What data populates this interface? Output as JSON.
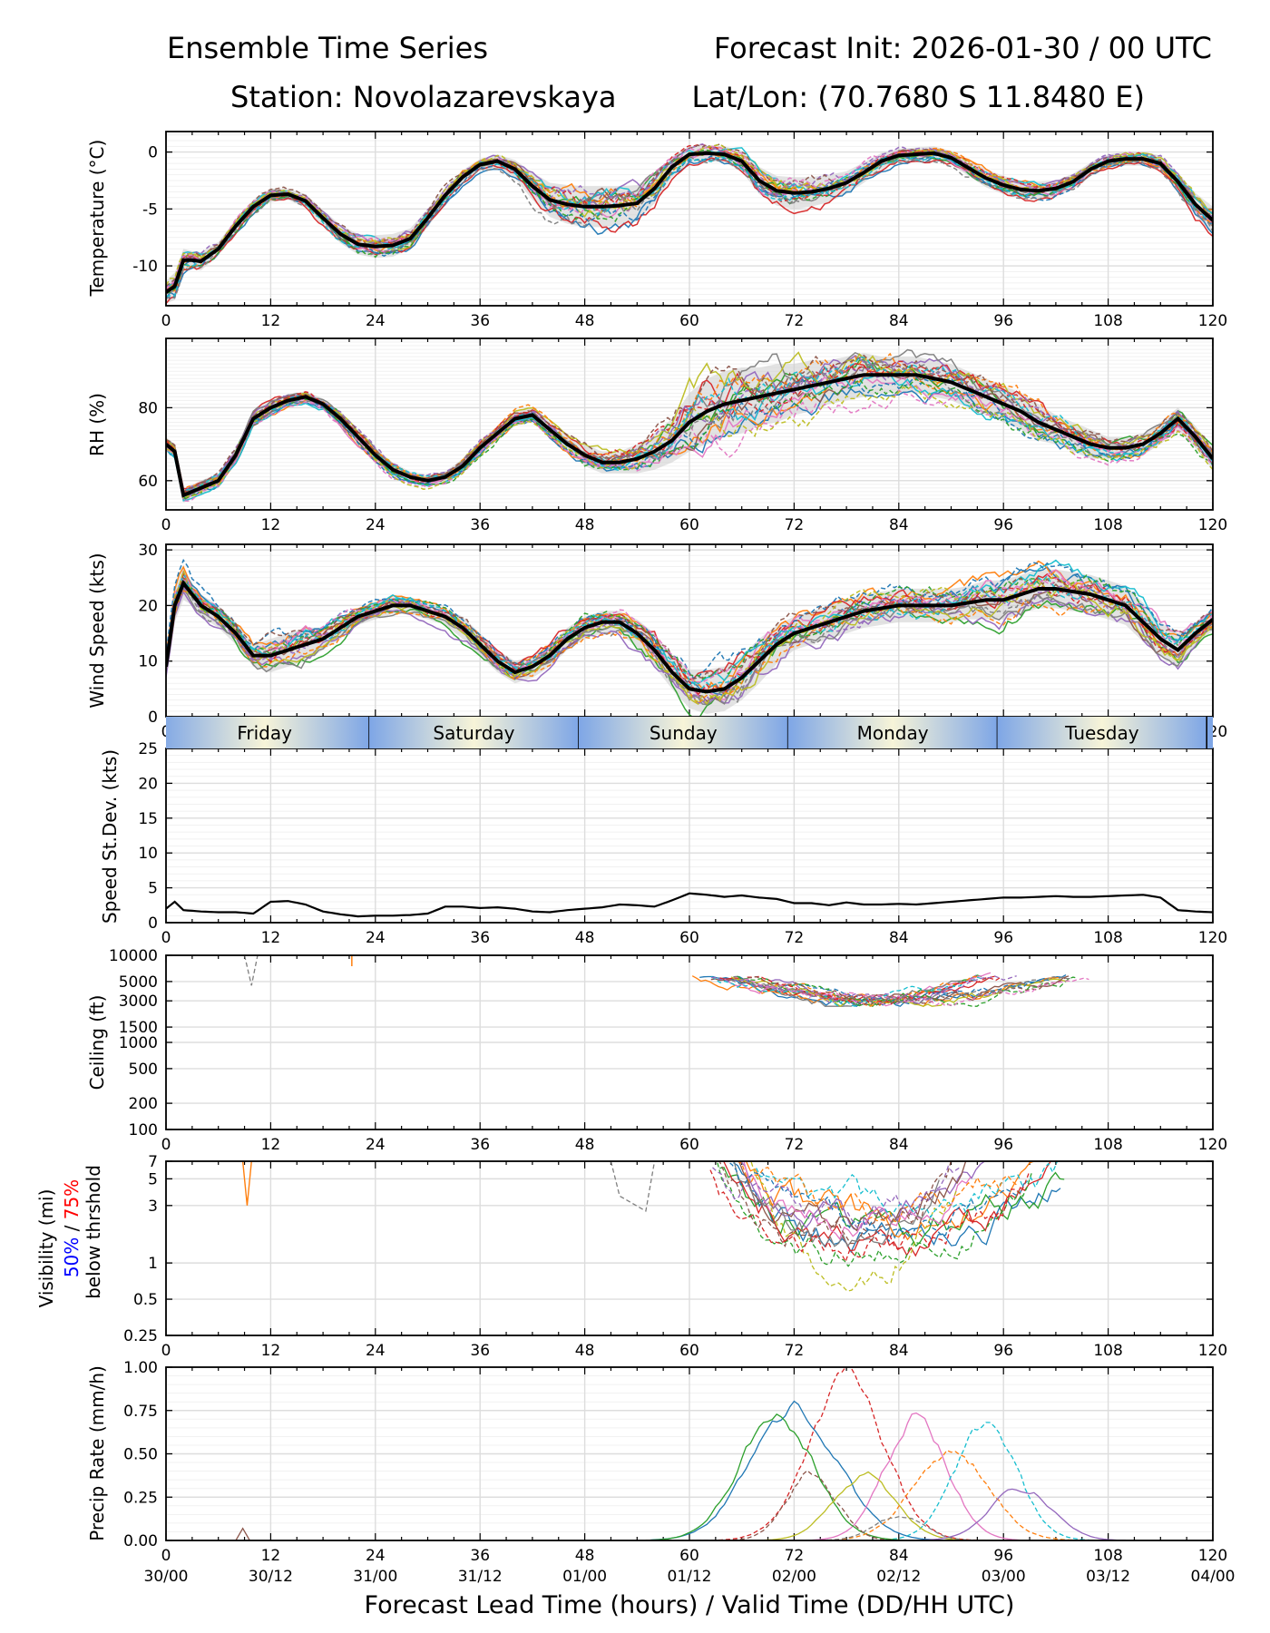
{
  "header": {
    "title": "Ensemble Time Series",
    "init": "Forecast Init: 2026-01-30 / 00 UTC",
    "station": "Station: Novolazarevskaya",
    "latlon": "Lat/Lon: (70.7680 S 11.8480 E)"
  },
  "xaxis": {
    "range": [
      0,
      120
    ],
    "ticks": [
      "0",
      "12",
      "24",
      "36",
      "48",
      "60",
      "72",
      "84",
      "96",
      "108",
      "120"
    ],
    "valid_times": [
      "30/00",
      "30/12",
      "31/00",
      "31/12",
      "01/00",
      "01/12",
      "02/00",
      "02/12",
      "03/00",
      "03/12",
      "04/00"
    ],
    "label": "Forecast Lead Time (hours) / Valid Time (DD/HH UTC)"
  },
  "days": [
    {
      "label": "Friday"
    },
    {
      "label": "Saturday"
    },
    {
      "label": "Sunday"
    },
    {
      "label": "Monday"
    },
    {
      "label": "Tuesday"
    }
  ],
  "colors": {
    "mean": "#000000",
    "spread": "#cccccc",
    "members": [
      "#1f77b4",
      "#ff7f0e",
      "#2ca02c",
      "#d62728",
      "#9467bd",
      "#8c564b",
      "#e377c2",
      "#7f7f7f",
      "#bcbd22",
      "#17becf"
    ],
    "vis50": "#0000ff",
    "vis75": "#ff0000"
  },
  "chart_data": [
    {
      "type": "line",
      "ylabel": "Temperature (°C)",
      "ylim": [
        -13.5,
        1.8
      ],
      "yticks": [
        "0",
        "-5",
        "-10"
      ],
      "x": [
        0,
        1,
        2,
        3,
        4,
        6,
        8,
        10,
        12,
        14,
        16,
        18,
        20,
        22,
        24,
        26,
        28,
        30,
        32,
        34,
        36,
        38,
        40,
        42,
        44,
        46,
        48,
        50,
        52,
        54,
        56,
        58,
        60,
        62,
        64,
        66,
        68,
        70,
        72,
        74,
        76,
        78,
        80,
        82,
        84,
        86,
        88,
        90,
        92,
        94,
        96,
        98,
        100,
        102,
        104,
        106,
        108,
        110,
        112,
        114,
        116,
        118,
        120
      ],
      "series": [
        {
          "name": "ensemble mean",
          "values": [
            -12.3,
            -11.8,
            -9.5,
            -9.5,
            -9.6,
            -8.5,
            -6.5,
            -4.8,
            -3.8,
            -3.7,
            -4.3,
            -5.8,
            -7.2,
            -8.1,
            -8.3,
            -8.2,
            -7.6,
            -5.8,
            -3.8,
            -2.2,
            -1.1,
            -0.8,
            -1.5,
            -3.0,
            -4.2,
            -4.6,
            -4.8,
            -4.8,
            -4.7,
            -4.5,
            -3.2,
            -1.3,
            -0.2,
            -0.1,
            -0.2,
            -0.8,
            -2.5,
            -3.4,
            -3.6,
            -3.5,
            -3.2,
            -2.7,
            -1.8,
            -0.8,
            -0.3,
            -0.2,
            -0.1,
            -0.5,
            -1.4,
            -2.3,
            -2.9,
            -3.3,
            -3.4,
            -3.2,
            -2.6,
            -1.5,
            -0.8,
            -0.6,
            -0.6,
            -1.0,
            -2.6,
            -4.6,
            -6.0
          ]
        }
      ],
      "spread": [
        1.0,
        1.2,
        1.0,
        0.8,
        0.8,
        0.6,
        0.6,
        0.6,
        0.6,
        0.5,
        0.6,
        0.7,
        0.8,
        0.9,
        1.0,
        1.0,
        0.9,
        0.8,
        0.7,
        0.6,
        0.5,
        0.6,
        0.8,
        1.2,
        1.5,
        1.7,
        1.8,
        1.8,
        1.7,
        1.6,
        1.3,
        0.9,
        0.7,
        0.7,
        0.7,
        0.9,
        1.2,
        1.3,
        1.4,
        1.3,
        1.2,
        1.0,
        0.9,
        0.7,
        0.6,
        0.6,
        0.6,
        0.6,
        0.7,
        0.8,
        0.8,
        0.8,
        0.8,
        0.7,
        0.7,
        0.6,
        0.6,
        0.6,
        0.6,
        0.7,
        0.8,
        1.0,
        1.2
      ]
    },
    {
      "type": "line",
      "ylabel": "RH (%)",
      "ylim": [
        52,
        99
      ],
      "yticks": [
        "80",
        "60"
      ],
      "x": [
        0,
        1,
        2,
        3,
        4,
        6,
        8,
        10,
        12,
        14,
        16,
        18,
        20,
        22,
        24,
        26,
        28,
        30,
        32,
        34,
        36,
        38,
        40,
        42,
        44,
        46,
        48,
        50,
        52,
        54,
        56,
        58,
        60,
        62,
        64,
        66,
        68,
        70,
        72,
        74,
        76,
        78,
        80,
        82,
        84,
        86,
        88,
        90,
        92,
        94,
        96,
        98,
        100,
        102,
        104,
        106,
        108,
        110,
        112,
        114,
        116,
        118,
        120
      ],
      "series": [
        {
          "name": "ensemble mean",
          "values": [
            70,
            68,
            56,
            57,
            58,
            60,
            67,
            77,
            80,
            82,
            83,
            81,
            77,
            72,
            67,
            63,
            61,
            60,
            61,
            64,
            69,
            73,
            77,
            78,
            74,
            70,
            67,
            65,
            65,
            66,
            68,
            71,
            76,
            79,
            81,
            82,
            83,
            84,
            85,
            86,
            87,
            88,
            89,
            89,
            89,
            89,
            88,
            87,
            85,
            83,
            81,
            79,
            76,
            74,
            72,
            70,
            69,
            69,
            70,
            73,
            77,
            72,
            66
          ]
        }
      ],
      "spread": [
        2,
        2,
        2,
        2,
        2,
        2,
        2,
        2,
        2,
        1.5,
        1.5,
        1.5,
        2,
        2,
        2,
        2,
        1.5,
        1.5,
        1.5,
        2,
        2,
        2,
        2,
        2,
        2,
        2,
        3,
        3,
        3,
        4,
        5,
        6,
        8,
        9,
        9,
        9,
        8,
        8,
        7,
        7,
        6,
        6,
        6,
        5,
        5,
        5,
        5,
        5,
        5,
        5,
        5,
        5,
        5,
        4,
        4,
        4,
        3,
        3,
        3,
        3,
        3,
        3,
        3
      ]
    },
    {
      "type": "line",
      "ylabel": "Wind Speed (kts)",
      "ylim": [
        0,
        31
      ],
      "yticks": [
        "30",
        "20",
        "10",
        "0"
      ],
      "x": [
        0,
        1,
        2,
        3,
        4,
        6,
        8,
        10,
        12,
        14,
        16,
        18,
        20,
        22,
        24,
        26,
        28,
        30,
        32,
        34,
        36,
        38,
        40,
        42,
        44,
        46,
        48,
        50,
        52,
        54,
        56,
        58,
        60,
        62,
        64,
        66,
        68,
        70,
        72,
        74,
        76,
        78,
        80,
        82,
        84,
        86,
        88,
        90,
        92,
        94,
        96,
        98,
        100,
        102,
        104,
        106,
        108,
        110,
        112,
        114,
        116,
        118,
        120
      ],
      "series": [
        {
          "name": "ensemble mean",
          "values": [
            9,
            20,
            24,
            22,
            20,
            18,
            15,
            11,
            11,
            12,
            13,
            14,
            16,
            18,
            19,
            20,
            20,
            19,
            18,
            16,
            13,
            10,
            8,
            9,
            11,
            14,
            16,
            17,
            17,
            15,
            12,
            8,
            5,
            4.5,
            5,
            7,
            10,
            13,
            15,
            16,
            17,
            18,
            19,
            19.5,
            20,
            20,
            20,
            20,
            20.5,
            21,
            21,
            22,
            23,
            23,
            22.5,
            22,
            21,
            20,
            17,
            14,
            12,
            15,
            17.5
          ]
        }
      ],
      "spread": [
        2,
        3,
        3,
        2,
        2,
        2,
        2,
        2,
        3,
        3,
        3,
        2,
        2,
        1.5,
        1.5,
        1.5,
        1.5,
        1.5,
        1.5,
        2,
        2,
        2,
        2,
        2,
        2,
        2,
        2,
        2,
        2,
        2.5,
        3,
        3,
        3.5,
        4,
        4,
        4,
        4,
        3.5,
        3,
        3,
        3,
        3,
        3,
        3,
        3,
        3,
        3,
        3,
        3,
        3.5,
        3.5,
        3.5,
        3.5,
        3.5,
        3.5,
        3.5,
        3.5,
        3.5,
        3.5,
        3,
        3,
        2,
        2
      ]
    },
    {
      "type": "line",
      "ylabel": "Speed St.Dev. (kts)",
      "ylim": [
        0,
        25
      ],
      "yticks": [
        "25",
        "20",
        "15",
        "10",
        "5",
        "0"
      ],
      "x": [
        0,
        1,
        2,
        3,
        4,
        6,
        8,
        10,
        12,
        14,
        16,
        18,
        20,
        22,
        24,
        26,
        28,
        30,
        32,
        34,
        36,
        38,
        40,
        42,
        44,
        46,
        48,
        50,
        52,
        54,
        56,
        58,
        60,
        62,
        64,
        66,
        68,
        70,
        72,
        74,
        76,
        78,
        80,
        82,
        84,
        86,
        88,
        90,
        92,
        94,
        96,
        98,
        100,
        102,
        104,
        106,
        108,
        110,
        112,
        114,
        116,
        118,
        120
      ],
      "series": [
        {
          "name": "speed st.dev.",
          "values": [
            2,
            3,
            1.8,
            1.7,
            1.6,
            1.5,
            1.5,
            1.3,
            3.0,
            3.1,
            2.6,
            1.6,
            1.2,
            0.9,
            1.0,
            1.0,
            1.1,
            1.3,
            2.3,
            2.3,
            2.1,
            2.2,
            2.0,
            1.6,
            1.5,
            1.8,
            2.0,
            2.2,
            2.6,
            2.5,
            2.3,
            3.2,
            4.2,
            4.0,
            3.7,
            3.9,
            3.6,
            3.4,
            2.8,
            2.8,
            2.5,
            2.9,
            2.6,
            2.6,
            2.7,
            2.6,
            2.8,
            3.0,
            3.2,
            3.4,
            3.6,
            3.6,
            3.7,
            3.8,
            3.7,
            3.7,
            3.8,
            3.9,
            4.0,
            3.6,
            1.8,
            1.6,
            1.5
          ]
        }
      ]
    },
    {
      "type": "line",
      "ylabel": "Ceiling (ft)",
      "yscale": "log",
      "ylim": [
        100,
        10000
      ],
      "yticks": [
        "10000",
        "5000",
        "3000",
        "1500",
        "1000",
        "500",
        "200",
        "100"
      ]
    },
    {
      "type": "line",
      "ylabel": "Visibility (mi)",
      "yscale": "log",
      "ylim": [
        0.25,
        7
      ],
      "yticks": [
        "7",
        "5",
        "3",
        "1",
        "0.5",
        "0.25"
      ],
      "legend_50": "50%",
      "legend_sep": " / ",
      "legend_75": "75%",
      "legend_tail": "below thrshold"
    },
    {
      "type": "line",
      "ylabel": "Precip Rate (mm/h)",
      "ylim": [
        0,
        1.0
      ],
      "yticks": [
        "1.00",
        "0.75",
        "0.50",
        "0.25",
        "0.00"
      ]
    }
  ]
}
